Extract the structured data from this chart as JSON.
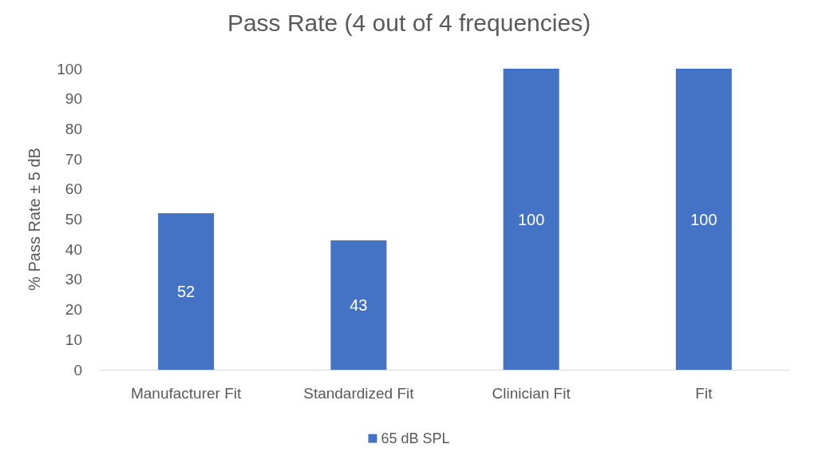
{
  "chart_data": {
    "type": "bar",
    "title": "Pass Rate (4 out of 4 frequencies)",
    "ylabel": "% Pass Rate ± 5 dB",
    "categories": [
      "Manufacturer Fit",
      "Standardized Fit",
      "Clinician Fit",
      "Fit"
    ],
    "series": [
      {
        "name": "65 dB SPL",
        "color": "#4472c4",
        "values": [
          52,
          43,
          100,
          100
        ]
      }
    ],
    "ylim": [
      0,
      100
    ],
    "yticks": [
      0,
      10,
      20,
      30,
      40,
      50,
      60,
      70,
      80,
      90,
      100
    ],
    "grid": false,
    "legend": "bottom",
    "data_labels": true
  }
}
